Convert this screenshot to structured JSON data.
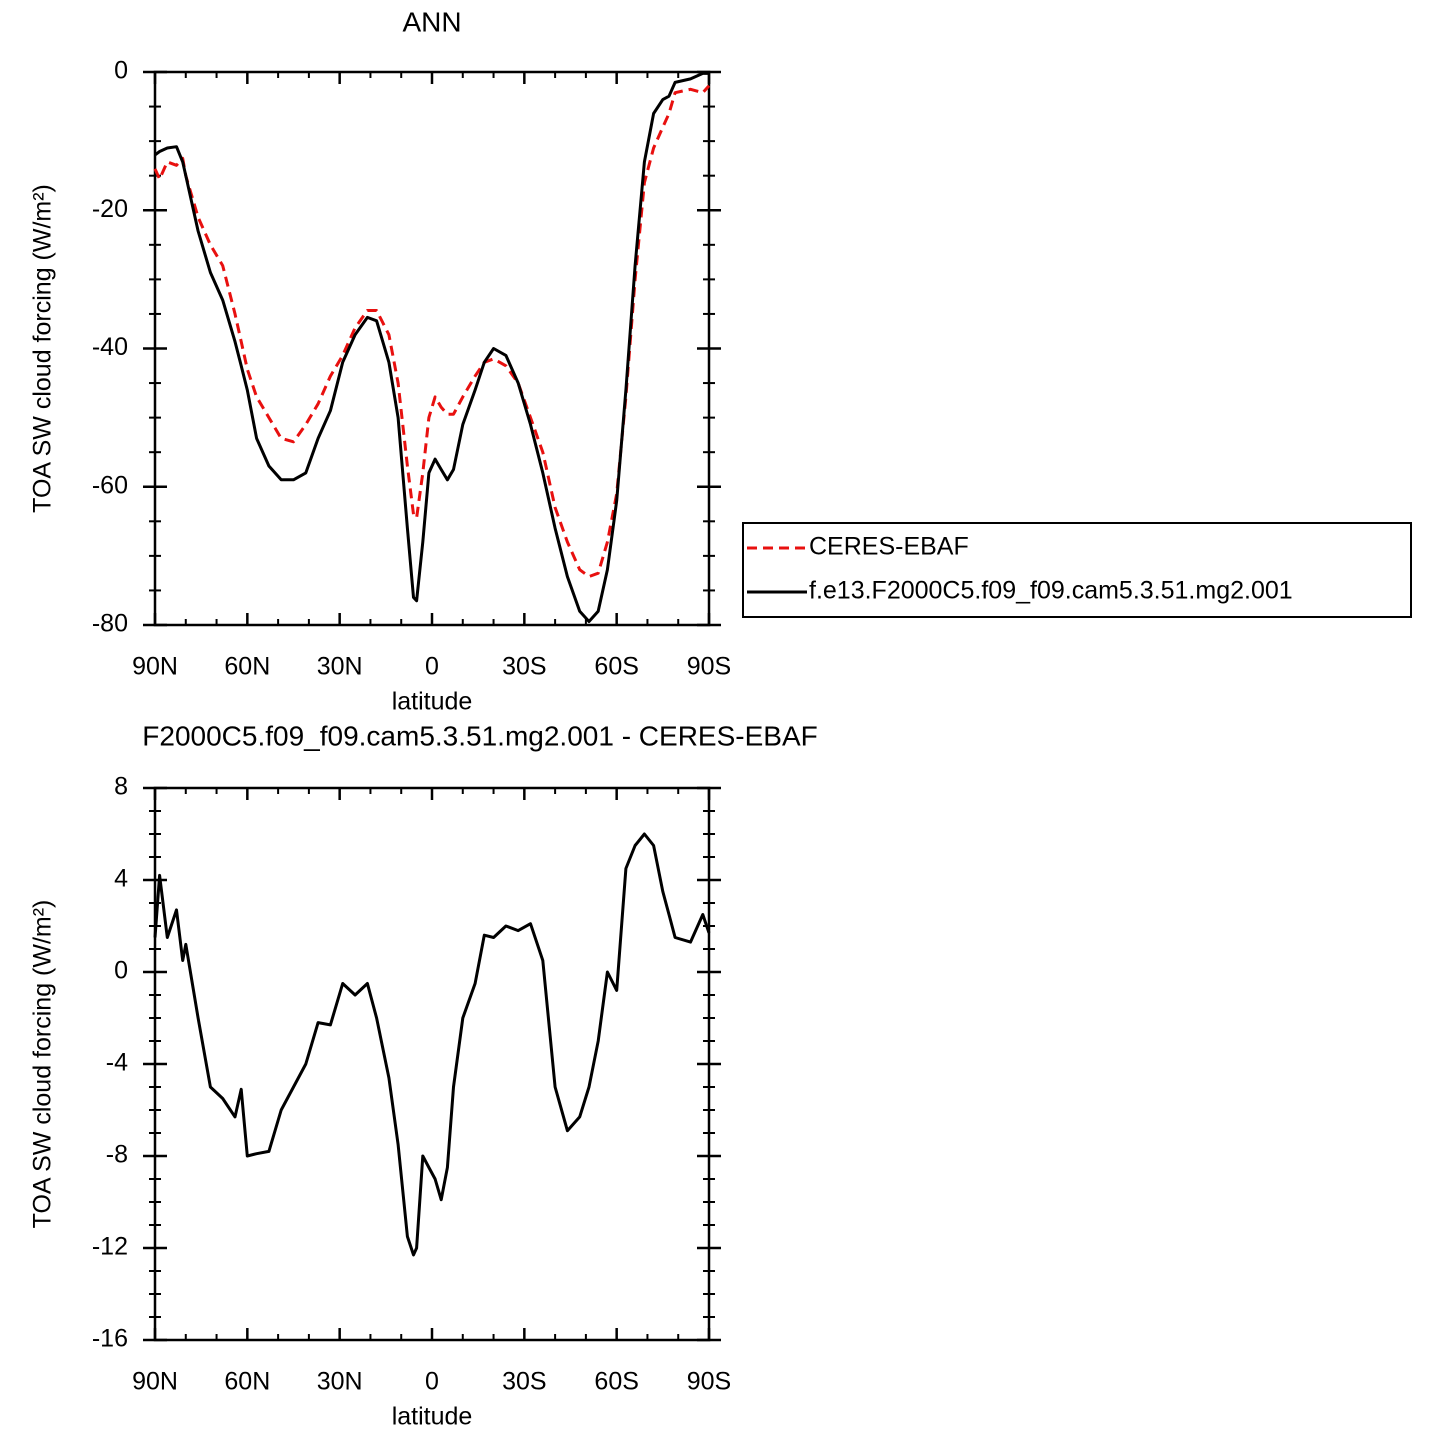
{
  "chart_data": [
    {
      "type": "line",
      "title": "ANN",
      "xlabel": "latitude",
      "ylabel": "TOA SW cloud forcing (W/m²)",
      "x": [
        90,
        88.5,
        86,
        83,
        81,
        80,
        76,
        72,
        68,
        64,
        62,
        60,
        57,
        53,
        49,
        45,
        41,
        37,
        33,
        29,
        25,
        21,
        18,
        14,
        11,
        8,
        6,
        5,
        3,
        1,
        -1,
        -3,
        -5,
        -7,
        -10,
        -14,
        -17,
        -20,
        -24,
        -28,
        -32,
        -36,
        -40,
        -44,
        -48,
        -51,
        -54,
        -57,
        -60,
        -63,
        -66,
        -69,
        -72,
        -75,
        -77,
        -79,
        -84,
        -88,
        -90
      ],
      "series": [
        {
          "name": "CERES-EBAF",
          "color": "#e8100f",
          "linestyle": "dashed",
          "values": [
            -14,
            -15.5,
            -13,
            -13.5,
            -12.5,
            -15,
            -21,
            -25,
            -28,
            -35,
            -39,
            -43,
            -47,
            -50,
            -53,
            -53.5,
            -51,
            -48,
            -44,
            -41,
            -37,
            -34.5,
            -34.5,
            -38,
            -45,
            -57,
            -64,
            -64.5,
            -58,
            -50,
            -47,
            -48.5,
            -49.5,
            -49.5,
            -47,
            -44,
            -42,
            -41.5,
            -42.5,
            -45,
            -50,
            -55,
            -63,
            -68,
            -72,
            -73,
            -72.5,
            -68,
            -61,
            -47,
            -30,
            -16,
            -11,
            -8,
            -6,
            -3,
            -2.5,
            -3,
            -2
          ]
        },
        {
          "name": "f.e13.F2000C5.f09_f09.cam5.3.51.mg2.001",
          "color": "#000000",
          "linestyle": "solid",
          "values": [
            -12,
            -11.5,
            -11,
            -10.8,
            -13,
            -15,
            -23,
            -29,
            -33,
            -39,
            -42.5,
            -46,
            -53,
            -57,
            -59,
            -59,
            -58,
            -53,
            -49,
            -42,
            -38,
            -35.5,
            -36,
            -42,
            -50,
            -66,
            -76,
            -76.5,
            -68,
            -58,
            -56,
            -57.5,
            -59,
            -57.5,
            -51,
            -46,
            -42,
            -40,
            -41,
            -45,
            -51,
            -58,
            -66,
            -73,
            -78,
            -79.5,
            -78,
            -72,
            -62,
            -46,
            -28,
            -13,
            -6,
            -4,
            -3.5,
            -1.5,
            -1,
            -0.2,
            -0.2
          ]
        }
      ],
      "xlim": [
        90,
        -90
      ],
      "xticks": [
        {
          "value": 90,
          "label": "90N"
        },
        {
          "value": 60,
          "label": "60N"
        },
        {
          "value": 30,
          "label": "30N"
        },
        0,
        {
          "value": -30,
          "label": "30S"
        },
        {
          "value": -60,
          "label": "60S"
        },
        {
          "value": -90,
          "label": "90S"
        }
      ],
      "xminorticks": [
        80,
        70,
        50,
        40,
        20,
        10,
        -10,
        -20,
        -40,
        -50,
        -70,
        -80
      ],
      "ylim": [
        -80,
        0
      ],
      "yticks": [
        0,
        -20,
        -40,
        -60,
        -80
      ],
      "yminorticks": [
        -5,
        -10,
        -15,
        -25,
        -30,
        -35,
        -45,
        -50,
        -55,
        -65,
        -70,
        -75
      ],
      "legend": "right"
    },
    {
      "type": "line",
      "title": "F2000C5.f09_f09.cam5.3.51.mg2.001 - CERES-EBAF",
      "xlabel": "latitude",
      "ylabel": "TOA SW cloud forcing (W/m²)",
      "x": [
        90,
        88.5,
        86,
        83,
        81,
        80,
        76,
        72,
        68,
        64,
        62,
        60,
        57,
        53,
        49,
        45,
        41,
        37,
        33,
        29,
        25,
        21,
        18,
        14,
        11,
        8,
        6,
        5,
        3,
        1,
        -1,
        -3,
        -5,
        -7,
        -10,
        -14,
        -17,
        -20,
        -24,
        -28,
        -32,
        -36,
        -40,
        -44,
        -48,
        -51,
        -54,
        -57,
        -60,
        -63,
        -66,
        -69,
        -72,
        -75,
        -77,
        -79,
        -84,
        -88,
        -90
      ],
      "color": "#000000",
      "values": [
        1.5,
        4.2,
        1.5,
        2.7,
        0.5,
        1.2,
        -2,
        -5,
        -5.5,
        -6.3,
        -5.1,
        -8,
        -7.9,
        -7.8,
        -6,
        -5,
        -4,
        -2.2,
        -2.3,
        -0.5,
        -1,
        -0.5,
        -2,
        -4.6,
        -7.5,
        -11.5,
        -12.3,
        -12,
        -8,
        -8.5,
        -9,
        -9.9,
        -8.5,
        -5,
        -2,
        -0.5,
        1.6,
        1.5,
        2,
        1.8,
        2.1,
        0.5,
        -5,
        -6.9,
        -6.3,
        -5,
        -3,
        0,
        -0.8,
        4.5,
        5.5,
        6,
        5.5,
        3.5,
        2.5,
        1.5,
        1.3,
        2.5,
        1.7
      ],
      "xlim": [
        90,
        -90
      ],
      "xticks": [
        {
          "value": 90,
          "label": "90N"
        },
        {
          "value": 60,
          "label": "60N"
        },
        {
          "value": 30,
          "label": "30N"
        },
        0,
        {
          "value": -30,
          "label": "30S"
        },
        {
          "value": -60,
          "label": "60S"
        },
        {
          "value": -90,
          "label": "90S"
        }
      ],
      "xminorticks": [
        80,
        70,
        50,
        40,
        20,
        10,
        -10,
        -20,
        -40,
        -50,
        -70,
        -80
      ],
      "ylim": [
        -16,
        8
      ],
      "yticks": [
        8,
        4,
        0,
        -4,
        -8,
        -12,
        -16
      ],
      "yminorticks": [
        7,
        6,
        5,
        3,
        2,
        1,
        -1,
        -2,
        -3,
        -5,
        -6,
        -7,
        -9,
        -10,
        -11,
        -13,
        -14,
        -15
      ]
    }
  ]
}
